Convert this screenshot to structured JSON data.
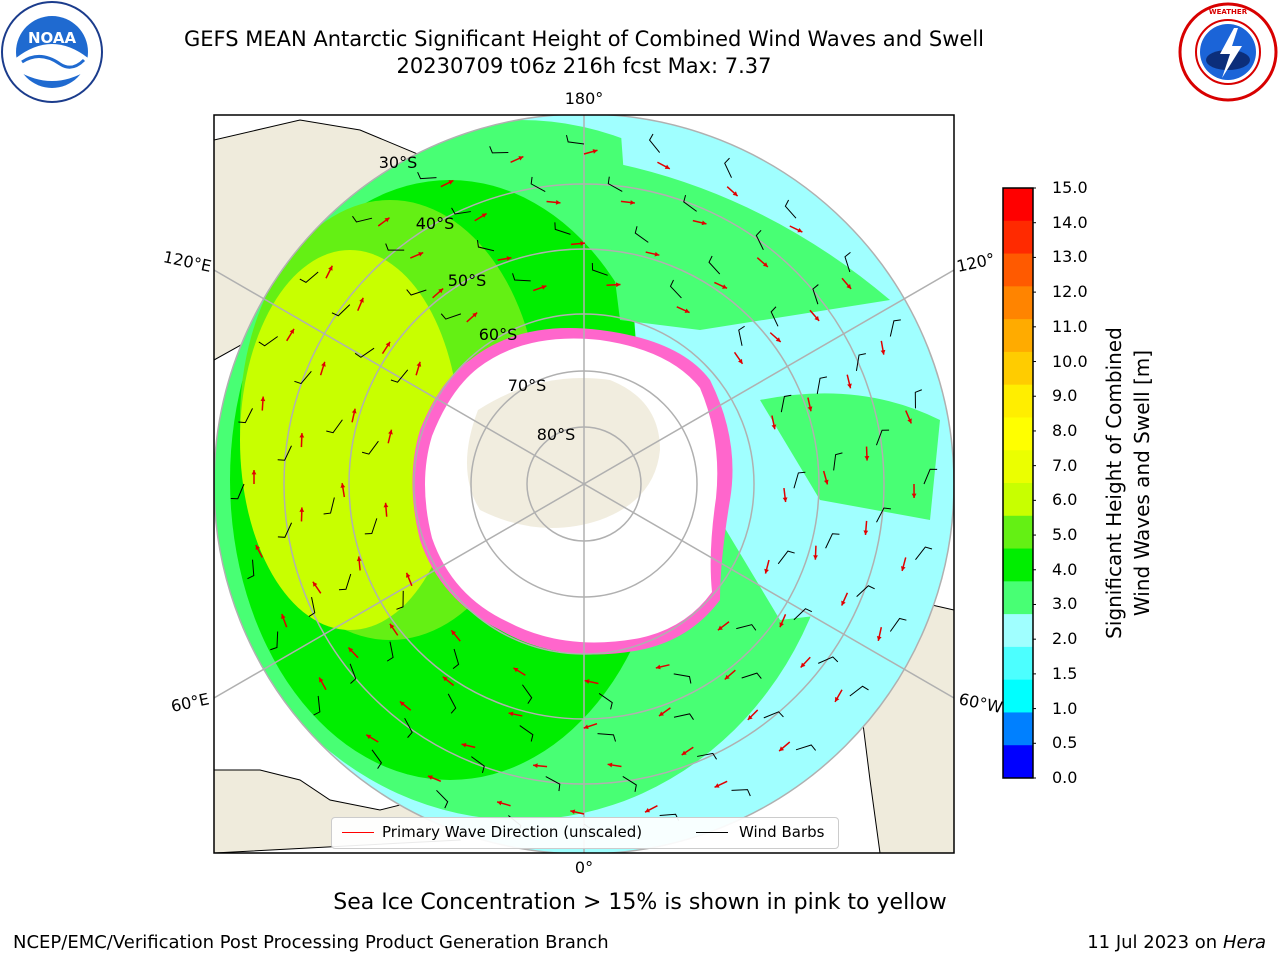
{
  "header": {
    "title_line1": "GEFS MEAN Antarctic Significant Height of Combined Wind Waves and Swell",
    "title_line2": "20230709 t06z 216h fcst   Max: 7.37"
  },
  "logos": {
    "left": {
      "icon": "noaa-logo-icon",
      "text": "NOAA"
    },
    "right": {
      "icon": "nws-logo-icon",
      "text": "NATIONAL WEATHER SERVICE"
    }
  },
  "map": {
    "projection": "south-polar-stereographic",
    "longitude_labels": [
      "180°",
      "120°E",
      "120°",
      "60°E",
      "60°W",
      "0°"
    ],
    "latitude_labels": [
      "30°S",
      "40°S",
      "50°S",
      "60°S",
      "70°S",
      "80°S"
    ]
  },
  "legend": {
    "primary": "Primary Wave Direction (unscaled)",
    "barbs": "Wind Barbs",
    "primary_color": "#ff0000",
    "barbs_color": "#000000"
  },
  "colorbar": {
    "title_line1": "Significant Height of Combined",
    "title_line2": "Wind Waves and Swell [m]",
    "ticks": [
      "15.0",
      "14.0",
      "13.0",
      "12.0",
      "11.0",
      "10.0",
      "9.0",
      "8.0",
      "7.0",
      "6.0",
      "5.0",
      "4.0",
      "3.0",
      "2.0",
      "1.5",
      "1.0",
      "0.5",
      "0.0"
    ],
    "colors_top_to_bottom": [
      "#ff0000",
      "#ff2a00",
      "#ff5a00",
      "#ff8400",
      "#ffab00",
      "#ffcc00",
      "#ffee00",
      "#ffff00",
      "#ebff00",
      "#c8ff00",
      "#64f014",
      "#00ee00",
      "#48ff74",
      "#a0ffff",
      "#4cffff",
      "#00ffff",
      "#0080ff",
      "#0000ff"
    ]
  },
  "note": "Sea Ice Concentration > 15% is shown in pink to yellow",
  "footer": {
    "left": "NCEP/EMC/Verification Post Processing Product Generation Branch",
    "right_date": "11 Jul 2023 on ",
    "right_host": "Hera"
  }
}
